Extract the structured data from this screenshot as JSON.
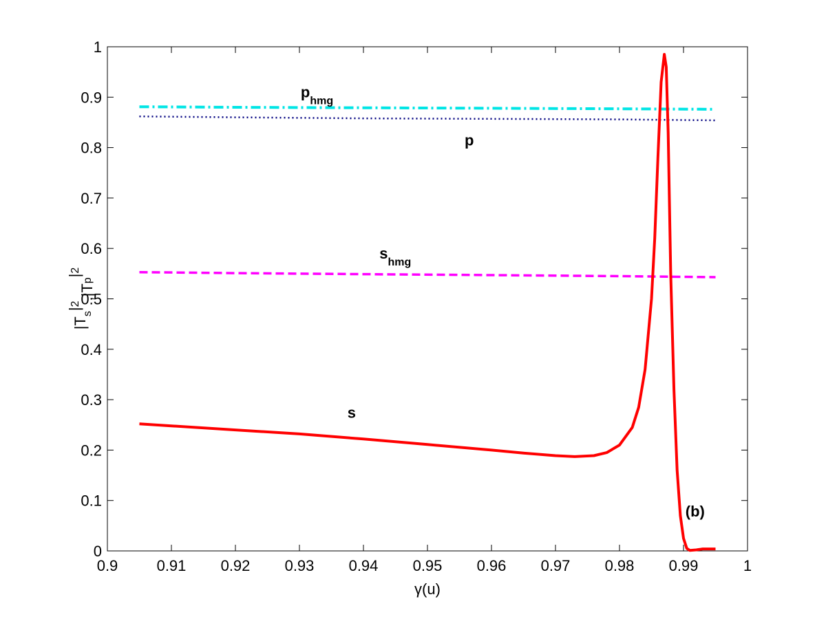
{
  "chart_data": {
    "type": "line",
    "xlabel": "γ(u)",
    "ylabel_parts": [
      "|T",
      "s",
      "|",
      "2",
      ",|T",
      "p",
      "|",
      "2"
    ],
    "xlim": [
      0.9,
      1.0
    ],
    "ylim": [
      0,
      1
    ],
    "x_ticks": [
      "0.9",
      "0.91",
      "0.92",
      "0.93",
      "0.94",
      "0.95",
      "0.96",
      "0.97",
      "0.98",
      "0.99",
      "1"
    ],
    "y_ticks": [
      "0",
      "0.1",
      "0.2",
      "0.3",
      "0.4",
      "0.5",
      "0.6",
      "0.7",
      "0.8",
      "0.9",
      "1"
    ],
    "grid": false,
    "series": [
      {
        "color": "#00e5e5",
        "dash": "dashdot",
        "x": [
          0.905,
          0.92,
          0.94,
          0.96,
          0.98,
          0.995
        ],
        "y": [
          0.881,
          0.88,
          0.879,
          0.878,
          0.877,
          0.876
        ]
      },
      {
        "color": "#000080",
        "dash": "dotted",
        "x": [
          0.905,
          0.92,
          0.94,
          0.96,
          0.98,
          0.995
        ],
        "y": [
          0.862,
          0.86,
          0.858,
          0.857,
          0.856,
          0.854
        ]
      },
      {
        "color": "#ff00ff",
        "dash": "dashed",
        "x": [
          0.905,
          0.92,
          0.94,
          0.96,
          0.98,
          0.995
        ],
        "y": [
          0.553,
          0.551,
          0.549,
          0.547,
          0.545,
          0.543
        ]
      },
      {
        "color": "#ff0000",
        "dash": "solid",
        "x": [
          0.905,
          0.91,
          0.92,
          0.93,
          0.94,
          0.95,
          0.96,
          0.965,
          0.97,
          0.973,
          0.976,
          0.978,
          0.98,
          0.982,
          0.983,
          0.984,
          0.985,
          0.9855,
          0.986,
          0.9865,
          0.987,
          0.9873,
          0.9876,
          0.988,
          0.9885,
          0.989,
          0.9895,
          0.99,
          0.9905,
          0.991,
          0.992,
          0.993,
          0.995
        ],
        "y": [
          0.252,
          0.248,
          0.24,
          0.232,
          0.222,
          0.211,
          0.2,
          0.194,
          0.189,
          0.187,
          0.189,
          0.195,
          0.21,
          0.245,
          0.285,
          0.36,
          0.5,
          0.62,
          0.78,
          0.93,
          0.985,
          0.96,
          0.83,
          0.55,
          0.32,
          0.16,
          0.07,
          0.025,
          0.005,
          0.001,
          0.002,
          0.004,
          0.004
        ]
      }
    ],
    "annotations": [
      {
        "base": "p",
        "sub": "hmg",
        "x": 0.9302,
        "y": 0.9
      },
      {
        "base": "p",
        "sub": "",
        "x": 0.9558,
        "y": 0.804
      },
      {
        "base": "s",
        "sub": "hmg",
        "x": 0.9425,
        "y": 0.58
      },
      {
        "base": "s",
        "sub": "",
        "x": 0.9375,
        "y": 0.264
      },
      {
        "base": "(b)",
        "sub": "",
        "x": 0.9903,
        "y": 0.068
      }
    ]
  }
}
